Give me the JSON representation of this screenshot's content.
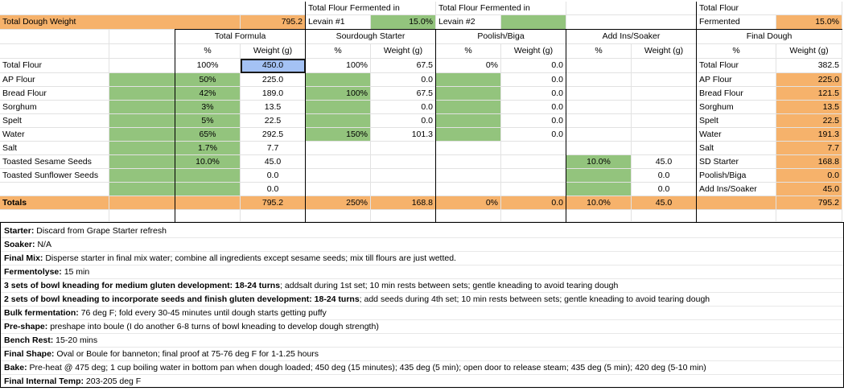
{
  "colors": {
    "orange": "#f6b26b",
    "green": "#93c47d",
    "selected": "#a4c2f4"
  },
  "header": {
    "total_dough_weight_label": "Total Dough Weight",
    "total_dough_weight_value": "795.2",
    "levain1_title": "Total Flour Fermented in",
    "levain1_label": "Levain #1",
    "levain1_value": "15.0%",
    "levain2_title": "Total Flour Fermented in",
    "levain2_label": "Levain #2",
    "total_flour_title": "Total Flour",
    "fermented_label": "Fermented",
    "fermented_value": "15.0%"
  },
  "sections": {
    "total_formula": "Total Formula",
    "sourdough_starter": "Sourdough Starter",
    "poolish_biga": "Poolish/Biga",
    "add_ins_soaker": "Add Ins/Soaker",
    "final_dough": "Final Dough"
  },
  "columns": {
    "pct": "%",
    "weight": "Weight (g)"
  },
  "rows": [
    {
      "name": "Total Flour",
      "tf_pct": "100%",
      "tf_wt": "450.0",
      "sd_pct": "100%",
      "sd_wt": "67.5",
      "pb_pct": "0%",
      "pb_wt": "0.0",
      "ai_pct": "",
      "ai_wt": "",
      "fd_name": "Total Flour",
      "fd_wt": "382.5"
    },
    {
      "name": "AP Flour",
      "tf_pct": "50%",
      "tf_wt": "225.0",
      "sd_pct": "",
      "sd_wt": "0.0",
      "pb_pct": "",
      "pb_wt": "0.0",
      "ai_pct": "",
      "ai_wt": "",
      "fd_name": "AP Flour",
      "fd_wt": "225.0"
    },
    {
      "name": "Bread Flour",
      "tf_pct": "42%",
      "tf_wt": "189.0",
      "sd_pct": "100%",
      "sd_wt": "67.5",
      "pb_pct": "",
      "pb_wt": "0.0",
      "ai_pct": "",
      "ai_wt": "",
      "fd_name": "Bread Flour",
      "fd_wt": "121.5"
    },
    {
      "name": "Sorghum",
      "tf_pct": "3%",
      "tf_wt": "13.5",
      "sd_pct": "",
      "sd_wt": "0.0",
      "pb_pct": "",
      "pb_wt": "0.0",
      "ai_pct": "",
      "ai_wt": "",
      "fd_name": "Sorghum",
      "fd_wt": "13.5"
    },
    {
      "name": "Spelt",
      "tf_pct": "5%",
      "tf_wt": "22.5",
      "sd_pct": "",
      "sd_wt": "0.0",
      "pb_pct": "",
      "pb_wt": "0.0",
      "ai_pct": "",
      "ai_wt": "",
      "fd_name": "Spelt",
      "fd_wt": "22.5"
    },
    {
      "name": "Water",
      "tf_pct": "65%",
      "tf_wt": "292.5",
      "sd_pct": "150%",
      "sd_wt": "101.3",
      "pb_pct": "",
      "pb_wt": "0.0",
      "ai_pct": "",
      "ai_wt": "",
      "fd_name": "Water",
      "fd_wt": "191.3"
    },
    {
      "name": "Salt",
      "tf_pct": "1.7%",
      "tf_wt": "7.7",
      "sd_pct": "",
      "sd_wt": "",
      "pb_pct": "",
      "pb_wt": "",
      "ai_pct": "",
      "ai_wt": "",
      "fd_name": "Salt",
      "fd_wt": "7.7"
    },
    {
      "name": "Toasted Sesame Seeds",
      "tf_pct": "10.0%",
      "tf_wt": "45.0",
      "sd_pct": "",
      "sd_wt": "",
      "pb_pct": "",
      "pb_wt": "",
      "ai_pct": "10.0%",
      "ai_wt": "45.0",
      "fd_name": "SD Starter",
      "fd_wt": "168.8"
    },
    {
      "name": "Toasted Sunflower Seeds",
      "tf_pct": "",
      "tf_wt": "0.0",
      "sd_pct": "",
      "sd_wt": "",
      "pb_pct": "",
      "pb_wt": "",
      "ai_pct": "",
      "ai_wt": "0.0",
      "fd_name": "Poolish/Biga",
      "fd_wt": "0.0"
    },
    {
      "name": "",
      "tf_pct": "",
      "tf_wt": "0.0",
      "sd_pct": "",
      "sd_wt": "",
      "pb_pct": "",
      "pb_wt": "",
      "ai_pct": "",
      "ai_wt": "0.0",
      "fd_name": "Add Ins/Soaker",
      "fd_wt": "45.0"
    }
  ],
  "totals": {
    "label": "Totals",
    "tf_wt": "795.2",
    "sd_pct": "250%",
    "sd_wt": "168.8",
    "pb_pct": "0%",
    "pb_wt": "0.0",
    "ai_pct": "10.0%",
    "ai_wt": "45.0",
    "fd_wt": "795.2"
  },
  "notes": [
    {
      "key": "Starter:",
      "text": "  Discard from Grape Starter refresh"
    },
    {
      "key": "Soaker:",
      "text": " N/A"
    },
    {
      "key": "Final Mix:",
      "text": " Disperse starter in final mix water; combine all ingredients except sesame seeds; mix till flours are just wetted."
    },
    {
      "key": "Fermentolyse:",
      "text": " 15 min"
    },
    {
      "key": "3 sets of bowl kneading for medium gluten development:  18-24 turns",
      "text": "; addsalt during 1st set; 10 min rests between sets; gentle kneading to avoid tearing dough"
    },
    {
      "key": "2 sets of bowl kneading to incorporate seeds and finish gluten development:  18-24 turns",
      "text": "; add seeds during 4th set; 10 min rests between sets; gentle kneading to avoid tearing dough"
    },
    {
      "key": "Bulk fermentation:",
      "text": " 76 deg F; fold every 30-45 minutes until dough starts getting puffy"
    },
    {
      "key": "Pre-shape:",
      "text": " preshape into boule (I do another 6-8 turns of bowl kneading to develop dough strength)"
    },
    {
      "key": "Bench Rest:",
      "text": " 15-20 mins"
    },
    {
      "key": "Final Shape:",
      "text": " Oval or Boule for banneton; final proof at 75-76 deg F for 1-1.25 hours"
    },
    {
      "key": "Bake:",
      "text": " Pre-heat @ 475 deg; 1 cup boiling water in bottom pan when dough loaded; 450 deg (15 minutes); 435 deg (5 min); open door to release steam; 435 deg (5 min); 420 deg (5-10 min)"
    },
    {
      "key": "Final Internal Temp:",
      "text": " 203-205 deg F"
    }
  ]
}
